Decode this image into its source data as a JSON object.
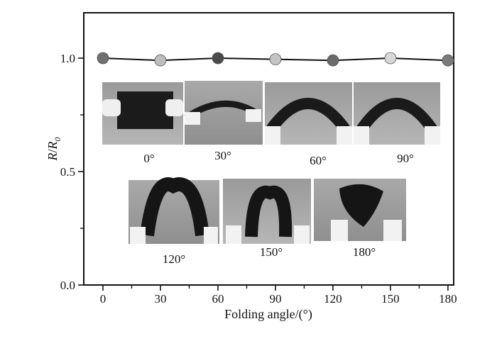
{
  "chart_data": {
    "type": "line",
    "xlabel": "Folding angle/(°)",
    "ylabel_main": "R",
    "ylabel_denominator": "R",
    "ylabel_subscript": "0",
    "xlim": [
      -10,
      183
    ],
    "ylim": [
      0.0,
      1.2
    ],
    "x_ticks": [
      "0",
      "30",
      "60",
      "90",
      "120",
      "150",
      "180"
    ],
    "y_ticks": [
      "0.0",
      "0.5",
      "1.0"
    ],
    "y_tick_values": [
      0.0,
      0.5,
      1.0
    ],
    "x": [
      0,
      30,
      60,
      90,
      120,
      150,
      180
    ],
    "series": [
      {
        "values": [
          1.0,
          0.99,
          1.0,
          0.995,
          0.99,
          1.0,
          0.99
        ]
      }
    ],
    "marker_colors": [
      "#6f6f6f",
      "#bdbdbd",
      "#4a4a4a",
      "#c4c4c4",
      "#6a6a6a",
      "#d8d8d8",
      "#7a7a7a"
    ],
    "grid": false,
    "inset_photo_labels": [
      "0°",
      "30°",
      "60°",
      "90°",
      "120°",
      "150°",
      "180°"
    ]
  }
}
